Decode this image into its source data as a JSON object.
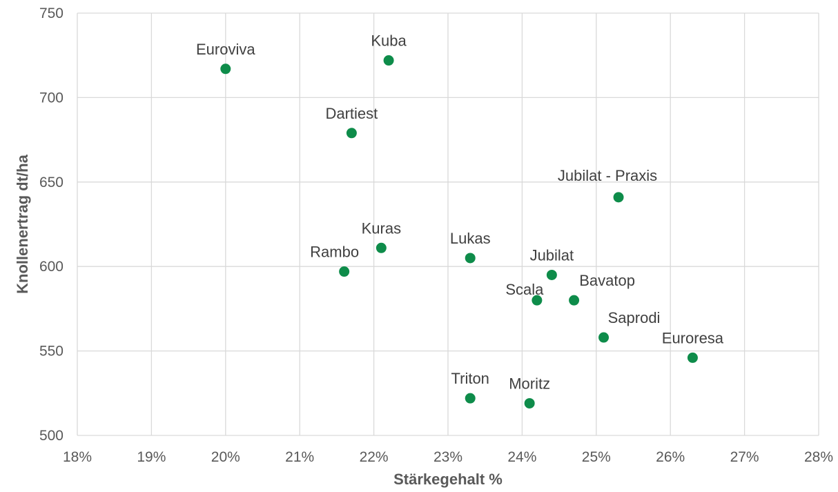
{
  "chart_data": {
    "type": "scatter",
    "xlabel": "Stärkegehalt %",
    "ylabel": "Knollenertrag dt/ha",
    "xlim": [
      18,
      28
    ],
    "ylim": [
      500,
      750
    ],
    "x_ticks": [
      18,
      19,
      20,
      21,
      22,
      23,
      24,
      25,
      26,
      27,
      28
    ],
    "x_tick_labels": [
      "18%",
      "19%",
      "20%",
      "21%",
      "22%",
      "23%",
      "24%",
      "25%",
      "26%",
      "27%",
      "28%"
    ],
    "y_ticks": [
      500,
      550,
      600,
      650,
      700,
      750
    ],
    "y_tick_labels": [
      "500",
      "550",
      "600",
      "650",
      "700",
      "750"
    ],
    "grid": true,
    "marker_color": "#0e8c4a",
    "points": [
      {
        "label": "Euroviva",
        "x": 20.0,
        "y": 717
      },
      {
        "label": "Kuba",
        "x": 22.2,
        "y": 722
      },
      {
        "label": "Dartiest",
        "x": 21.7,
        "y": 679
      },
      {
        "label": "Jubilat - Praxis",
        "x": 25.3,
        "y": 641
      },
      {
        "label": "Kuras",
        "x": 22.1,
        "y": 611
      },
      {
        "label": "Rambo",
        "x": 21.6,
        "y": 597
      },
      {
        "label": "Lukas",
        "x": 23.3,
        "y": 605
      },
      {
        "label": "Jubilat",
        "x": 24.4,
        "y": 595
      },
      {
        "label": "Scala",
        "x": 24.2,
        "y": 580
      },
      {
        "label": "Bavatop",
        "x": 24.7,
        "y": 580
      },
      {
        "label": "Saprodi",
        "x": 25.1,
        "y": 558
      },
      {
        "label": "Euroresa",
        "x": 26.3,
        "y": 546
      },
      {
        "label": "Triton",
        "x": 23.3,
        "y": 522
      },
      {
        "label": "Moritz",
        "x": 24.1,
        "y": 519
      }
    ]
  }
}
